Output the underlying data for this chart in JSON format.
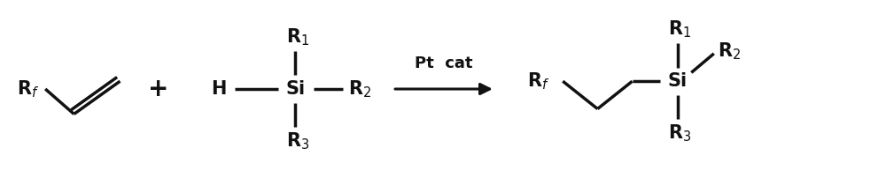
{
  "bg_color": "#ffffff",
  "line_color": "#111111",
  "figsize": [
    10.0,
    2.02
  ],
  "dpi": 100,
  "font_size_main": 15,
  "font_size_plus": 20,
  "font_size_arrow_label": 13,
  "lw": 2.5,
  "xlim": [
    0,
    10
  ],
  "ylim": [
    0,
    2.02
  ]
}
